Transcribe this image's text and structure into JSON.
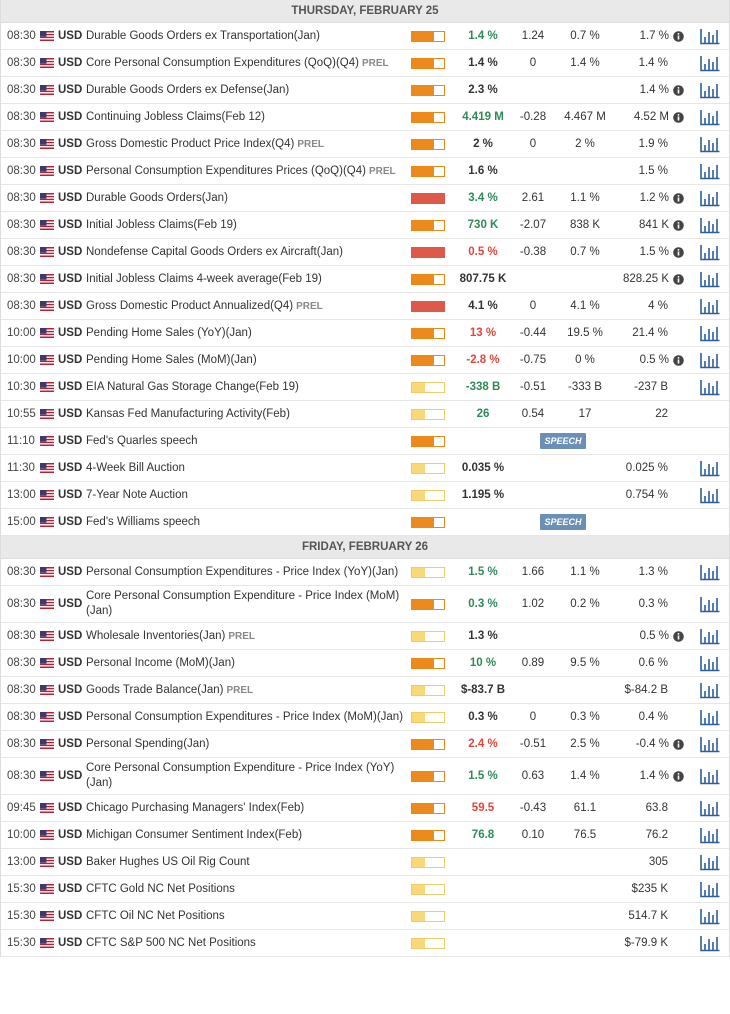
{
  "days": [
    {
      "title": "THURSDAY, FEBRUARY 25",
      "rows": [
        {
          "time": "08:30",
          "currency": "USD",
          "event": "Durable Goods Orders ex Transportation",
          "period": "(Jan)",
          "impact": "medium",
          "actual": "1.4 %",
          "actual_color": "green",
          "deviation": "1.24",
          "consensus": "0.7 %",
          "previous": "1.7 %",
          "info": true,
          "chart": true
        },
        {
          "time": "08:30",
          "currency": "USD",
          "event": "Core Personal Consumption Expenditures (QoQ)",
          "period": "(Q4)",
          "tag": "PREL",
          "impact": "medium",
          "actual": "1.4 %",
          "deviation": "0",
          "consensus": "1.4 %",
          "previous": "1.4 %",
          "chart": true
        },
        {
          "time": "08:30",
          "currency": "USD",
          "event": "Durable Goods Orders ex Defense",
          "period": "(Jan)",
          "impact": "medium",
          "actual": "2.3 %",
          "previous": "1.4 %",
          "info": true,
          "chart": true
        },
        {
          "time": "08:30",
          "currency": "USD",
          "event": "Continuing Jobless Claims",
          "period": "(Feb 12)",
          "impact": "medium",
          "actual": "4.419 M",
          "actual_color": "green",
          "deviation": "-0.28",
          "consensus": "4.467 M",
          "previous": "4.52 M",
          "info": true,
          "chart": true
        },
        {
          "time": "08:30",
          "currency": "USD",
          "event": "Gross Domestic Product Price Index",
          "period": "(Q4)",
          "tag": "PREL",
          "impact": "medium",
          "actual": "2 %",
          "deviation": "0",
          "consensus": "2 %",
          "previous": "1.9 %",
          "chart": true
        },
        {
          "time": "08:30",
          "currency": "USD",
          "event": "Personal Consumption Expenditures Prices (QoQ)",
          "period": "(Q4)",
          "tag": "PREL",
          "impact": "medium",
          "actual": "1.6 %",
          "previous": "1.5 %",
          "chart": true
        },
        {
          "time": "08:30",
          "currency": "USD",
          "event": "Durable Goods Orders",
          "period": "(Jan)",
          "impact": "high",
          "actual": "3.4 %",
          "actual_color": "green",
          "deviation": "2.61",
          "consensus": "1.1 %",
          "previous": "1.2 %",
          "info": true,
          "chart": true
        },
        {
          "time": "08:30",
          "currency": "USD",
          "event": "Initial Jobless Claims",
          "period": "(Feb 19)",
          "impact": "medium",
          "actual": "730 K",
          "actual_color": "green",
          "deviation": "-2.07",
          "consensus": "838 K",
          "previous": "841 K",
          "info": true,
          "chart": true
        },
        {
          "time": "08:30",
          "currency": "USD",
          "event": "Nondefense Capital Goods Orders ex Aircraft",
          "period": "(Jan)",
          "impact": "high",
          "actual": "0.5 %",
          "actual_color": "red",
          "deviation": "-0.38",
          "consensus": "0.7 %",
          "previous": "1.5 %",
          "info": true,
          "chart": true
        },
        {
          "time": "08:30",
          "currency": "USD",
          "event": "Initial Jobless Claims 4-week average",
          "period": "(Feb 19)",
          "impact": "medium",
          "actual": "807.75 K",
          "previous": "828.25 K",
          "info": true,
          "chart": true
        },
        {
          "time": "08:30",
          "currency": "USD",
          "event": "Gross Domestic Product Annualized",
          "period": "(Q4)",
          "tag": "PREL",
          "impact": "high",
          "actual": "4.1 %",
          "deviation": "0",
          "consensus": "4.1 %",
          "previous": "4 %",
          "chart": true
        },
        {
          "time": "10:00",
          "currency": "USD",
          "event": "Pending Home Sales (YoY)",
          "period": "(Jan)",
          "impact": "medium",
          "actual": "13 %",
          "actual_color": "red",
          "deviation": "-0.44",
          "consensus": "19.5 %",
          "previous": "21.4 %",
          "chart": true
        },
        {
          "time": "10:00",
          "currency": "USD",
          "event": "Pending Home Sales (MoM)",
          "period": "(Jan)",
          "impact": "medium",
          "actual": "-2.8 %",
          "actual_color": "red",
          "deviation": "-0.75",
          "consensus": "0 %",
          "previous": "0.5 %",
          "info": true,
          "chart": true
        },
        {
          "time": "10:30",
          "currency": "USD",
          "event": "EIA Natural Gas Storage Change",
          "period": "(Feb 19)",
          "impact": "low",
          "actual": "-338 B",
          "actual_color": "green",
          "deviation": "-0.51",
          "consensus": "-333 B",
          "previous": "-237 B",
          "chart": true
        },
        {
          "time": "10:55",
          "currency": "USD",
          "event": "Kansas Fed Manufacturing Activity",
          "period": "(Feb)",
          "impact": "low",
          "actual": "26",
          "actual_color": "green",
          "deviation": "0.54",
          "consensus": "17",
          "previous": "22"
        },
        {
          "time": "11:10",
          "currency": "USD",
          "event": "Fed's Quarles speech",
          "impact": "medium",
          "badge": "SPEECH"
        },
        {
          "time": "11:30",
          "currency": "USD",
          "event": "4-Week Bill Auction",
          "impact": "low",
          "actual": "0.035 %",
          "previous": "0.025 %",
          "chart": true
        },
        {
          "time": "13:00",
          "currency": "USD",
          "event": "7-Year Note Auction",
          "impact": "low",
          "actual": "1.195 %",
          "previous": "0.754 %",
          "chart": true
        },
        {
          "time": "15:00",
          "currency": "USD",
          "event": "Fed's Williams speech",
          "impact": "medium",
          "badge": "SPEECH"
        }
      ]
    },
    {
      "title": "FRIDAY, FEBRUARY 26",
      "rows": [
        {
          "time": "08:30",
          "currency": "USD",
          "event": "Personal Consumption Expenditures - Price Index (YoY)",
          "period": "(Jan)",
          "impact": "low",
          "actual": "1.5 %",
          "actual_color": "green",
          "deviation": "1.66",
          "consensus": "1.1 %",
          "previous": "1.3 %",
          "chart": true
        },
        {
          "time": "08:30",
          "currency": "USD",
          "event": "Core Personal Consumption Expenditure - Price Index (MoM)",
          "period": "(Jan)",
          "impact": "medium",
          "actual": "0.3 %",
          "actual_color": "green",
          "deviation": "1.02",
          "consensus": "0.2 %",
          "previous": "0.3 %",
          "chart": true
        },
        {
          "time": "08:30",
          "currency": "USD",
          "event": "Wholesale Inventories",
          "period": "(Jan)",
          "tag": "PREL",
          "impact": "low",
          "actual": "1.3 %",
          "previous": "0.5 %",
          "info": true,
          "chart": true
        },
        {
          "time": "08:30",
          "currency": "USD",
          "event": "Personal Income (MoM)",
          "period": "(Jan)",
          "impact": "medium",
          "actual": "10 %",
          "actual_color": "green",
          "deviation": "0.89",
          "consensus": "9.5 %",
          "previous": "0.6 %",
          "chart": true
        },
        {
          "time": "08:30",
          "currency": "USD",
          "event": "Goods Trade Balance",
          "period": "(Jan)",
          "tag": "PREL",
          "impact": "low",
          "actual": "$-83.7 B",
          "previous": "$-84.2 B",
          "chart": true
        },
        {
          "time": "08:30",
          "currency": "USD",
          "event": "Personal Consumption Expenditures - Price Index (MoM)",
          "period": "(Jan)",
          "impact": "low",
          "actual": "0.3 %",
          "deviation": "0",
          "consensus": "0.3 %",
          "previous": "0.4 %",
          "chart": true
        },
        {
          "time": "08:30",
          "currency": "USD",
          "event": "Personal Spending",
          "period": "(Jan)",
          "impact": "medium",
          "actual": "2.4 %",
          "actual_color": "red",
          "deviation": "-0.51",
          "consensus": "2.5 %",
          "previous": "-0.4 %",
          "info": true,
          "chart": true
        },
        {
          "time": "08:30",
          "currency": "USD",
          "event": "Core Personal Consumption Expenditure - Price Index (YoY)",
          "period": "(Jan)",
          "impact": "medium",
          "actual": "1.5 %",
          "actual_color": "green",
          "deviation": "0.63",
          "consensus": "1.4 %",
          "previous": "1.4 %",
          "info": true,
          "chart": true
        },
        {
          "time": "09:45",
          "currency": "USD",
          "event": "Chicago Purchasing Managers' Index",
          "period": "(Feb)",
          "impact": "medium",
          "actual": "59.5",
          "actual_color": "red",
          "deviation": "-0.43",
          "consensus": "61.1",
          "previous": "63.8",
          "chart": true
        },
        {
          "time": "10:00",
          "currency": "USD",
          "event": "Michigan Consumer Sentiment Index",
          "period": "(Feb)",
          "impact": "medium",
          "actual": "76.8",
          "actual_color": "green",
          "deviation": "0.10",
          "consensus": "76.5",
          "previous": "76.2",
          "chart": true
        },
        {
          "time": "13:00",
          "currency": "USD",
          "event": "Baker Hughes US Oil Rig Count",
          "impact": "low",
          "previous": "305",
          "chart": true
        },
        {
          "time": "15:30",
          "currency": "USD",
          "event": "CFTC Gold NC Net Positions",
          "impact": "low",
          "previous": "$235 K",
          "chart": true
        },
        {
          "time": "15:30",
          "currency": "USD",
          "event": "CFTC Oil NC Net Positions",
          "impact": "low",
          "previous": "514.7 K",
          "chart": true
        },
        {
          "time": "15:30",
          "currency": "USD",
          "event": "CFTC S&P 500 NC Net Positions",
          "impact": "low",
          "previous": "$-79.9 K",
          "chart": true
        }
      ]
    }
  ]
}
